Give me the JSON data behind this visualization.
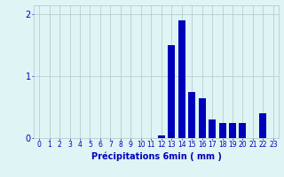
{
  "hours": [
    0,
    1,
    2,
    3,
    4,
    5,
    6,
    7,
    8,
    9,
    10,
    11,
    12,
    13,
    14,
    15,
    16,
    17,
    18,
    19,
    20,
    21,
    22,
    23
  ],
  "values": [
    0,
    0,
    0,
    0,
    0,
    0,
    0,
    0,
    0,
    0,
    0,
    0,
    0.05,
    1.5,
    1.9,
    0.75,
    0.65,
    0.3,
    0.25,
    0.25,
    0.25,
    0.0,
    0.4,
    0.0
  ],
  "bar_color": "#0000bb",
  "bg_color": "#dff4f4",
  "grid_color": "#b0c8c8",
  "axis_color": "#0000bb",
  "xlabel": "Précipitations 6min ( mm )",
  "xlabel_fontsize": 7,
  "tick_fontsize": 5.5,
  "ytick_fontsize": 7,
  "ylim": [
    0,
    2.15
  ],
  "yticks": [
    0,
    1,
    2
  ],
  "xlim": [
    -0.5,
    23.5
  ]
}
